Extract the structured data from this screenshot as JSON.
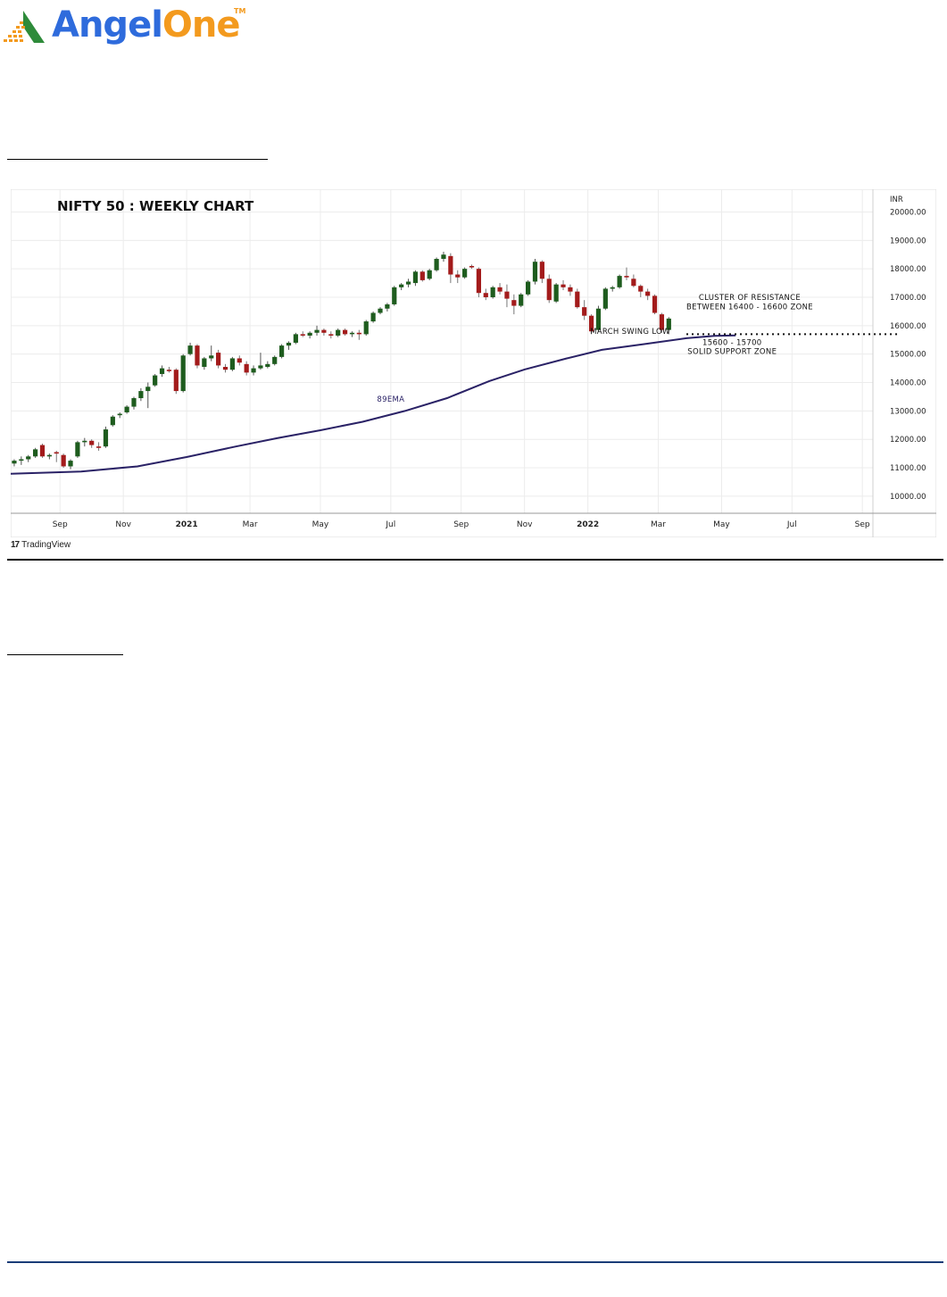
{
  "brand": {
    "part1": "Angel",
    "part2": "One",
    "tm": "TM"
  },
  "tradingview": {
    "mark": "17",
    "label": "TradingView"
  },
  "colors": {
    "up": "#1e5c1e",
    "down": "#a31b1b",
    "ema": "#2a2266",
    "grid": "#ececec",
    "brand_blue": "#2e6bdc",
    "brand_orange": "#f39a1e"
  },
  "chart_data": {
    "type": "candlestick",
    "title": "NIFTY 50 : WEEKLY CHART",
    "currency_label": "INR",
    "ylim": [
      9400,
      20800
    ],
    "yticks": [
      10000,
      11000,
      12000,
      13000,
      14000,
      15000,
      16000,
      17000,
      18000,
      19000,
      20000
    ],
    "ytick_labels": [
      "10000.00",
      "11000.00",
      "12000.00",
      "13000.00",
      "14000.00",
      "15000.00",
      "16000.00",
      "17000.00",
      "18000.00",
      "19000.00",
      "20000.00"
    ],
    "x_labels": [
      {
        "label": "Sep",
        "week": 7,
        "bold": false
      },
      {
        "label": "Nov",
        "week": 16,
        "bold": false
      },
      {
        "label": "2021",
        "week": 25,
        "bold": true
      },
      {
        "label": "Mar",
        "week": 34,
        "bold": false
      },
      {
        "label": "May",
        "week": 44,
        "bold": false
      },
      {
        "label": "Jul",
        "week": 54,
        "bold": false
      },
      {
        "label": "Sep",
        "week": 64,
        "bold": false
      },
      {
        "label": "Nov",
        "week": 73,
        "bold": false
      },
      {
        "label": "2022",
        "week": 82,
        "bold": true
      },
      {
        "label": "Mar",
        "week": 92,
        "bold": false
      },
      {
        "label": "May",
        "week": 101,
        "bold": false
      },
      {
        "label": "Jul",
        "week": 111,
        "bold": false
      },
      {
        "label": "Sep",
        "week": 121,
        "bold": false
      }
    ],
    "x_range": [
      0,
      122.5
    ],
    "candles": [
      [
        11150,
        11300,
        11050,
        11250
      ],
      [
        11250,
        11400,
        11100,
        11300
      ],
      [
        11300,
        11450,
        11200,
        11400
      ],
      [
        11400,
        11700,
        11350,
        11650
      ],
      [
        11800,
        11850,
        11350,
        11400
      ],
      [
        11400,
        11500,
        11300,
        11450
      ],
      [
        11550,
        11600,
        11200,
        11500
      ],
      [
        11450,
        11500,
        11000,
        11050
      ],
      [
        11050,
        11300,
        10950,
        11250
      ],
      [
        11400,
        11950,
        11350,
        11900
      ],
      [
        11900,
        12050,
        11750,
        11950
      ],
      [
        11950,
        12000,
        11700,
        11800
      ],
      [
        11750,
        11900,
        11600,
        11700
      ],
      [
        11750,
        12450,
        11700,
        12350
      ],
      [
        12500,
        12850,
        12450,
        12800
      ],
      [
        12850,
        12950,
        12750,
        12900
      ],
      [
        12950,
        13200,
        12900,
        13150
      ],
      [
        13150,
        13500,
        13050,
        13450
      ],
      [
        13450,
        13800,
        13350,
        13700
      ],
      [
        13700,
        14000,
        13100,
        13850
      ],
      [
        13900,
        14300,
        13850,
        14250
      ],
      [
        14300,
        14600,
        14200,
        14500
      ],
      [
        14450,
        14550,
        14350,
        14400
      ],
      [
        14450,
        14500,
        13600,
        13700
      ],
      [
        13700,
        15000,
        13650,
        14950
      ],
      [
        15000,
        15400,
        14950,
        15300
      ],
      [
        15300,
        15350,
        14500,
        14600
      ],
      [
        14550,
        14900,
        14450,
        14850
      ],
      [
        14850,
        15300,
        14750,
        14950
      ],
      [
        15050,
        15150,
        14500,
        14600
      ],
      [
        14550,
        14650,
        14350,
        14450
      ],
      [
        14450,
        14900,
        14400,
        14850
      ],
      [
        14850,
        14950,
        14600,
        14700
      ],
      [
        14650,
        14750,
        14250,
        14350
      ],
      [
        14350,
        14600,
        14250,
        14500
      ],
      [
        14500,
        15050,
        14450,
        14600
      ],
      [
        14550,
        14750,
        14500,
        14650
      ],
      [
        14650,
        14950,
        14600,
        14900
      ],
      [
        14900,
        15350,
        14850,
        15300
      ],
      [
        15300,
        15450,
        15150,
        15400
      ],
      [
        15400,
        15750,
        15350,
        15700
      ],
      [
        15700,
        15800,
        15600,
        15650
      ],
      [
        15650,
        15800,
        15550,
        15750
      ],
      [
        15750,
        16000,
        15650,
        15850
      ],
      [
        15850,
        15900,
        15650,
        15750
      ],
      [
        15700,
        15800,
        15550,
        15650
      ],
      [
        15650,
        15900,
        15600,
        15850
      ],
      [
        15850,
        15900,
        15650,
        15700
      ],
      [
        15700,
        15800,
        15600,
        15750
      ],
      [
        15750,
        15850,
        15500,
        15700
      ],
      [
        15700,
        16200,
        15650,
        16150
      ],
      [
        16150,
        16500,
        16100,
        16450
      ],
      [
        16450,
        16650,
        16400,
        16600
      ],
      [
        16600,
        16800,
        16500,
        16750
      ],
      [
        16750,
        17400,
        16700,
        17350
      ],
      [
        17350,
        17500,
        17250,
        17450
      ],
      [
        17450,
        17650,
        17350,
        17550
      ],
      [
        17500,
        17950,
        17400,
        17900
      ],
      [
        17900,
        17950,
        17550,
        17600
      ],
      [
        17650,
        18000,
        17600,
        17950
      ],
      [
        17950,
        18400,
        17900,
        18350
      ],
      [
        18350,
        18600,
        18250,
        18500
      ],
      [
        18450,
        18550,
        17500,
        17800
      ],
      [
        17800,
        17950,
        17500,
        17700
      ],
      [
        17700,
        18050,
        17650,
        18000
      ],
      [
        18100,
        18150,
        18000,
        18050
      ],
      [
        18000,
        18050,
        17000,
        17150
      ],
      [
        17150,
        17300,
        16900,
        17000
      ],
      [
        17000,
        17400,
        16950,
        17350
      ],
      [
        17350,
        17500,
        17100,
        17200
      ],
      [
        17200,
        17450,
        16650,
        16950
      ],
      [
        16900,
        17100,
        16400,
        16700
      ],
      [
        16700,
        17150,
        16650,
        17100
      ],
      [
        17100,
        17600,
        17050,
        17550
      ],
      [
        17550,
        18350,
        17450,
        18250
      ],
      [
        18250,
        18300,
        17500,
        17650
      ],
      [
        17650,
        17800,
        16800,
        16900
      ],
      [
        16850,
        17500,
        16800,
        17450
      ],
      [
        17450,
        17600,
        17250,
        17350
      ],
      [
        17350,
        17450,
        17050,
        17200
      ],
      [
        17200,
        17300,
        16600,
        16650
      ],
      [
        16650,
        16900,
        16200,
        16350
      ],
      [
        16350,
        16400,
        15700,
        15800
      ],
      [
        15850,
        16700,
        15800,
        16600
      ],
      [
        16600,
        17350,
        16550,
        17300
      ],
      [
        17300,
        17400,
        17200,
        17350
      ],
      [
        17350,
        17800,
        17300,
        17750
      ],
      [
        17750,
        18050,
        17600,
        17700
      ],
      [
        17650,
        17800,
        17350,
        17400
      ],
      [
        17400,
        17450,
        17000,
        17200
      ],
      [
        17200,
        17300,
        16900,
        17050
      ],
      [
        17050,
        17100,
        16400,
        16450
      ],
      [
        16400,
        16450,
        15750,
        15850
      ],
      [
        15850,
        16300,
        15700,
        16250
      ]
    ],
    "ema": {
      "name": "89EMA",
      "points": [
        [
          0,
          10790
        ],
        [
          10,
          10870
        ],
        [
          18,
          11050
        ],
        [
          25,
          11380
        ],
        [
          32,
          11750
        ],
        [
          38,
          12050
        ],
        [
          44,
          12320
        ],
        [
          50,
          12620
        ],
        [
          56,
          13000
        ],
        [
          62,
          13450
        ],
        [
          68,
          14050
        ],
        [
          73,
          14460
        ],
        [
          79,
          14850
        ],
        [
          84,
          15150
        ],
        [
          90,
          15350
        ],
        [
          96,
          15560
        ],
        [
          100,
          15640
        ],
        [
          103,
          15660
        ]
      ]
    },
    "support_line": {
      "value": 15700,
      "from_week": 96
    },
    "annotations": [
      {
        "text": "CLUSTER OF RESISTANCE",
        "week": 105,
        "value": 16900
      },
      {
        "text": "BETWEEN 16400 - 16600 ZONE",
        "week": 105,
        "value": 16580
      },
      {
        "text": "MARCH SWING LOW",
        "week": 88,
        "value": 15720
      },
      {
        "text": "15600 - 15700",
        "week": 102.5,
        "value": 15320
      },
      {
        "text": "SOLID SUPPORT ZONE",
        "week": 102.5,
        "value": 15000
      },
      {
        "text": "89EMA",
        "week": 54,
        "value": 13330
      }
    ]
  }
}
